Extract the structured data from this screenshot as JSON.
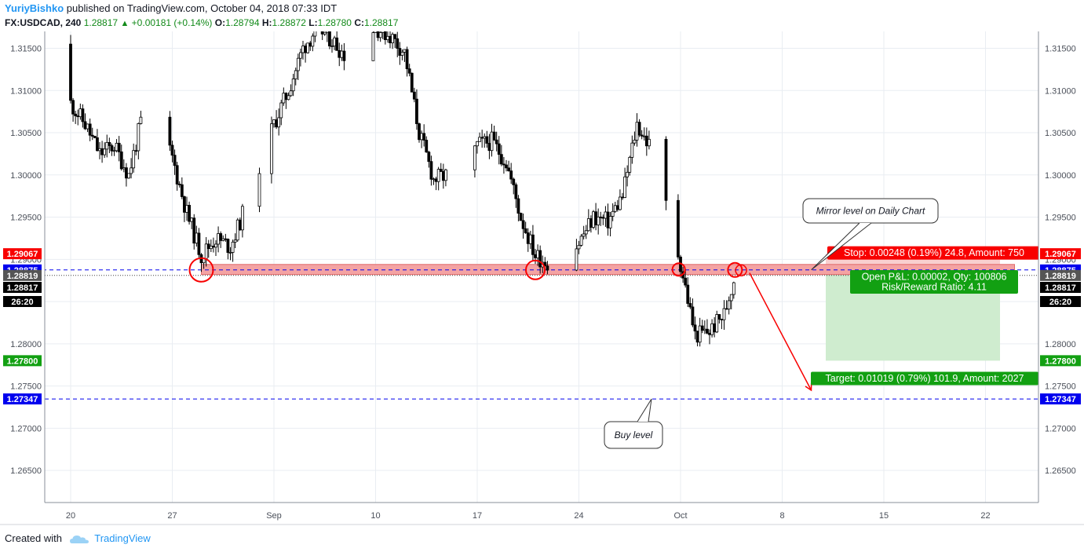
{
  "header": {
    "author": "YuriyBishko",
    "published_text": "published on TradingView.com, October 04, 2018 07:33 IDT",
    "symbol": "FX:USDCAD, 240",
    "last": "1.28817",
    "change_arrow": "▲",
    "change": "+0.00181 (+0.14%)",
    "o_label": "O:",
    "o_value": "1.28794",
    "h_label": "H:",
    "h_value": "1.28872",
    "l_label": "L:",
    "l_value": "1.28780",
    "c_label": "C:",
    "c_value": "1.28817"
  },
  "footer": {
    "created_with": "Created with",
    "brand": "TradingView",
    "logo_icon": "tradingview-cloud-icon"
  },
  "colors": {
    "bull": "#ffffff",
    "bear": "#000000",
    "wick": "#000000",
    "red": "#f80000",
    "green": "#12a012",
    "blue": "#0000ee",
    "zone_fill": "#f4a3a3",
    "target_fill": "#cfeccf",
    "stop_fill": "#f9cfcf"
  },
  "chart_data": {
    "type": "candlestick",
    "symbol": "FX:USDCAD",
    "timeframe": "240",
    "ylim": [
      1.2612,
      1.317
    ],
    "y_ticks": [
      "1.31500",
      "1.31000",
      "1.30500",
      "1.30000",
      "1.29500",
      "1.29000",
      "1.28500",
      "1.28000",
      "1.27500",
      "1.27000",
      "1.26500"
    ],
    "y_tick_values": [
      1.315,
      1.31,
      1.305,
      1.3,
      1.295,
      1.29,
      1.285,
      1.28,
      1.275,
      1.27,
      1.265
    ],
    "x_ticks": [
      "20",
      "27",
      "Sep",
      "10",
      "17",
      "24",
      "Oct",
      "8",
      "15",
      "22"
    ],
    "x_tick_dates": [
      "2018-08-20",
      "2018-08-27",
      "2018-09-03",
      "2018-09-10",
      "2018-09-17",
      "2018-09-24",
      "2018-10-01",
      "2018-10-08",
      "2018-10-15",
      "2018-10-22"
    ],
    "day_path": [
      {
        "date": "2018-08-19",
        "price": 1.3155
      },
      {
        "date": "2018-08-20",
        "price": 1.3085
      },
      {
        "date": "2018-08-21",
        "price": 1.306
      },
      {
        "date": "2018-08-22",
        "price": 1.3025
      },
      {
        "date": "2018-08-23",
        "price": 1.3035
      },
      {
        "date": "2018-08-24",
        "price": 1.3
      },
      {
        "date": "2018-08-25",
        "price": 1.3075
      },
      {
        "date": "2018-08-26",
        "price": 1.3065
      },
      {
        "date": "2018-08-27",
        "price": 1.302
      },
      {
        "date": "2018-08-28",
        "price": 1.2955
      },
      {
        "date": "2018-08-29",
        "price": 1.2905
      },
      {
        "date": "2018-08-30",
        "price": 1.2925
      },
      {
        "date": "2018-08-31",
        "price": 1.2915
      },
      {
        "date": "2018-09-01",
        "price": 1.296
      },
      {
        "date": "2018-09-02",
        "price": 1.301
      },
      {
        "date": "2018-09-03",
        "price": 1.306
      },
      {
        "date": "2018-09-04",
        "price": 1.31
      },
      {
        "date": "2018-09-05",
        "price": 1.315
      },
      {
        "date": "2018-09-06",
        "price": 1.3175
      },
      {
        "date": "2018-09-07",
        "price": 1.316
      },
      {
        "date": "2018-09-08",
        "price": 1.314
      },
      {
        "date": "2018-09-09",
        "price": 1.316
      },
      {
        "date": "2018-09-10",
        "price": 1.3175
      },
      {
        "date": "2018-09-11",
        "price": 1.3165
      },
      {
        "date": "2018-09-12",
        "price": 1.3145
      },
      {
        "date": "2018-09-13",
        "price": 1.305
      },
      {
        "date": "2018-09-14",
        "price": 1.2995
      },
      {
        "date": "2018-09-15",
        "price": 1.3
      },
      {
        "date": "2018-09-16",
        "price": 1.299
      },
      {
        "date": "2018-09-17",
        "price": 1.3035
      },
      {
        "date": "2018-09-18",
        "price": 1.304
      },
      {
        "date": "2018-09-19",
        "price": 1.3015
      },
      {
        "date": "2018-09-20",
        "price": 1.295
      },
      {
        "date": "2018-09-21",
        "price": 1.2905
      },
      {
        "date": "2018-09-22",
        "price": 1.2895
      },
      {
        "date": "2018-09-23",
        "price": 1.29
      },
      {
        "date": "2018-09-24",
        "price": 1.292
      },
      {
        "date": "2018-09-25",
        "price": 1.295
      },
      {
        "date": "2018-09-26",
        "price": 1.2945
      },
      {
        "date": "2018-09-27",
        "price": 1.2975
      },
      {
        "date": "2018-09-28",
        "price": 1.306
      },
      {
        "date": "2018-09-29",
        "price": 1.303
      },
      {
        "date": "2018-09-30",
        "price": 1.2965
      },
      {
        "date": "2018-10-01",
        "price": 1.2895
      },
      {
        "date": "2018-10-02",
        "price": 1.281
      },
      {
        "date": "2018-10-03",
        "price": 1.2815
      },
      {
        "date": "2018-10-04",
        "price": 1.2835
      },
      {
        "date": "2018-10-04T18:00",
        "price": 1.28817
      }
    ],
    "horizontal_levels": [
      {
        "name": "mirror-level",
        "price": 1.28875,
        "style": "dashed",
        "color": "#0000ee",
        "label": "1.28875",
        "label_bg": "#0000ee"
      },
      {
        "name": "buy-level",
        "price": 1.27347,
        "style": "dashed",
        "color": "#0000ee",
        "label": "1.27347",
        "label_bg": "#0000ee"
      }
    ],
    "price_labels": [
      {
        "name": "stop-price",
        "price": 1.29067,
        "text": "1.29067",
        "bg": "#f80000",
        "color": "#ffffff"
      },
      {
        "name": "mirror-price",
        "price": 1.28875,
        "text": "1.28875",
        "bg": "#0000ee",
        "color": "#ffffff"
      },
      {
        "name": "entry-price",
        "price": 1.28819,
        "text": "1.28819",
        "bg": "#555555",
        "color": "#ffffff"
      },
      {
        "name": "last-price",
        "price": 1.28817,
        "text": "1.28817",
        "bg": "#000000",
        "color": "#ffffff"
      },
      {
        "name": "target-price",
        "price": 1.278,
        "text": "1.27800",
        "bg": "#12a012",
        "color": "#ffffff"
      },
      {
        "name": "buy-price",
        "price": 1.27347,
        "text": "1.27347",
        "bg": "#0000ee",
        "color": "#ffffff"
      }
    ],
    "countdown": "26:20",
    "zone": {
      "price_top": 1.2894,
      "price_bottom": 1.2882,
      "start_date": "2018-08-29",
      "end_date": "2018-10-24"
    },
    "circles": [
      {
        "name": "circle-aug29",
        "date": "2018-08-29",
        "price": 1.28875
      },
      {
        "name": "circle-sep21",
        "date": "2018-09-21",
        "price": 1.28875
      },
      {
        "name": "circle-oct01",
        "date": "2018-09-30T21:00",
        "price": 1.2888
      },
      {
        "name": "circle-oct04",
        "date": "2018-10-04T18:00",
        "price": 1.28875
      }
    ],
    "position": {
      "type": "short",
      "entry": 1.28819,
      "stop": 1.29067,
      "target": 1.278,
      "start_date": "2018-10-11",
      "end_date": "2018-10-23",
      "stop_label": "Stop: 0.00248 (0.19%) 24.8, Amount: 750",
      "target_label": "Target: 0.01019 (0.79%) 101.9, Amount: 2027",
      "pnl_label": "Open P&L: 0.00002, Qty: 100806",
      "rr_label": "Risk/Reward Ratio: 4.11"
    },
    "annotations": [
      {
        "name": "callout-mirror-level",
        "text": "Mirror level on Daily Chart",
        "pointer_date": "2018-10-10",
        "pointer_price": 1.28875
      },
      {
        "name": "callout-buy-level",
        "text": "Buy level",
        "pointer_date": "2018-09-29",
        "pointer_price": 1.27347
      }
    ],
    "arrow": {
      "from_date": "2018-10-05T18:00",
      "from_price": 1.2884,
      "to_date": "2018-10-10",
      "to_price": 1.2745,
      "color": "#f80000"
    }
  }
}
